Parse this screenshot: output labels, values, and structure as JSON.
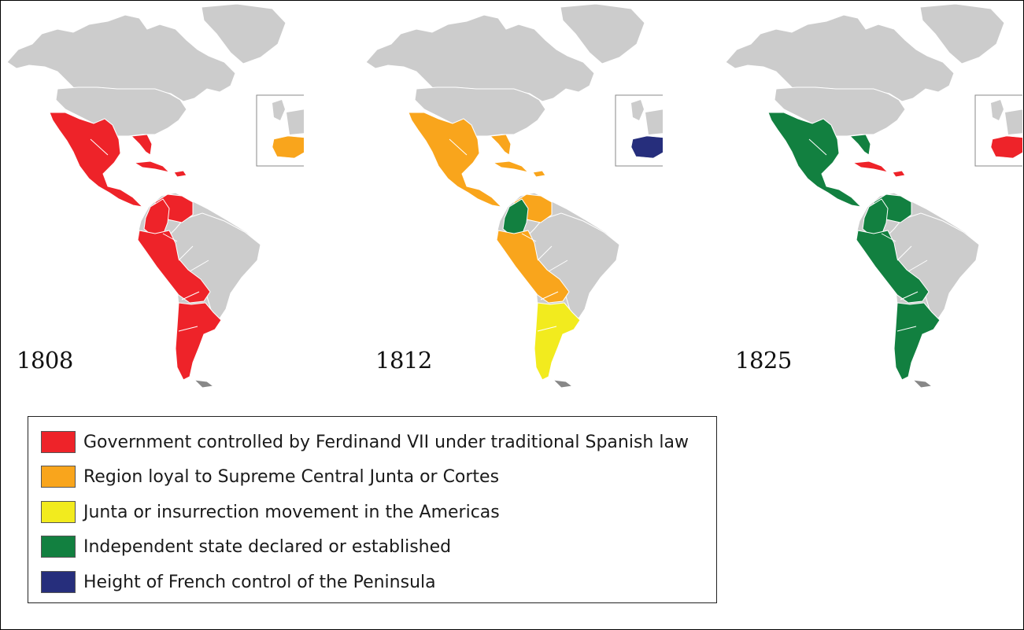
{
  "colors": {
    "land": "#cccccc",
    "border": "#ffffff",
    "red": "#ee2329",
    "orange": "#f9a51c",
    "yellow": "#f2eb1e",
    "green": "#128040",
    "navy": "#262e7c"
  },
  "maps": [
    {
      "year": "1808",
      "mainland": "red",
      "mexico": "red",
      "caribbean": "red",
      "nw_south_america": "red",
      "colombia": "red",
      "andes": "red",
      "southern_cone": "red",
      "iberia": "orange"
    },
    {
      "year": "1812",
      "mainland": "orange",
      "mexico": "orange",
      "caribbean": "orange",
      "nw_south_america": "orange",
      "colombia": "green",
      "andes": "orange",
      "southern_cone": "yellow",
      "iberia": "navy"
    },
    {
      "year": "1825",
      "mainland": "green",
      "mexico": "green",
      "caribbean": "red",
      "nw_south_america": "green",
      "colombia": "green",
      "andes": "green",
      "southern_cone": "green",
      "iberia": "red"
    }
  ],
  "legend": {
    "items": [
      {
        "label": "Government controlled by Ferdinand VII under traditional Spanish law",
        "color": "#ee2329"
      },
      {
        "label": "Region loyal to Supreme Central Junta or Cortes",
        "color": "#f9a51c"
      },
      {
        "label": "Junta or insurrection movement in the Americas",
        "color": "#f2eb1e"
      },
      {
        "label": "Independent state declared or established",
        "color": "#128040"
      },
      {
        "label": "Height of French control of the Peninsula",
        "color": "#262e7c"
      }
    ]
  }
}
